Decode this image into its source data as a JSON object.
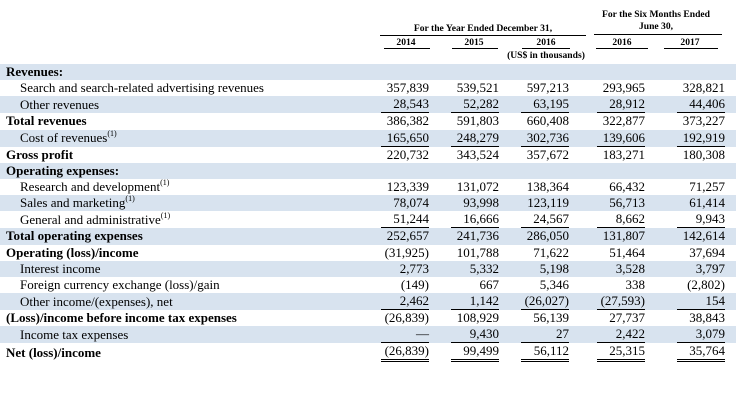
{
  "header": {
    "year_group": "For the Year Ended December 31,",
    "six_month_group_line1": "For the Six Months Ended",
    "six_month_group_line2": "June 30,",
    "years": [
      "2014",
      "2015",
      "2016",
      "2016",
      "2017"
    ],
    "unit_note": "(US$ in thousands)"
  },
  "rows": [
    {
      "label": "Revenues:",
      "indent": false,
      "bold": true,
      "shaded": true,
      "values": [
        "",
        "",
        "",
        "",
        ""
      ],
      "underline": "none"
    },
    {
      "label": "Search and search-related advertising revenues",
      "indent": true,
      "bold": false,
      "shaded": false,
      "values": [
        "357,839",
        "539,521",
        "597,213",
        "293,965",
        "328,821"
      ],
      "underline": "none"
    },
    {
      "label": "Other revenues",
      "indent": true,
      "bold": false,
      "shaded": true,
      "values": [
        "28,543",
        "52,282",
        "63,195",
        "28,912",
        "44,406"
      ],
      "underline": "single"
    },
    {
      "label": "Total revenues",
      "indent": false,
      "bold": true,
      "shaded": false,
      "values": [
        "386,382",
        "591,803",
        "660,408",
        "322,877",
        "373,227"
      ],
      "underline": "none"
    },
    {
      "label": "Cost of revenues",
      "sup": "(1)",
      "indent": true,
      "bold": false,
      "shaded": true,
      "values": [
        "165,650",
        "248,279",
        "302,736",
        "139,606",
        "192,919"
      ],
      "underline": "single"
    },
    {
      "label": "Gross profit",
      "indent": false,
      "bold": true,
      "shaded": false,
      "values": [
        "220,732",
        "343,524",
        "357,672",
        "183,271",
        "180,308"
      ],
      "underline": "none"
    },
    {
      "label": "Operating expenses:",
      "indent": false,
      "bold": true,
      "shaded": true,
      "values": [
        "",
        "",
        "",
        "",
        ""
      ],
      "underline": "none"
    },
    {
      "label": "Research and development",
      "sup": "(1)",
      "indent": true,
      "bold": false,
      "shaded": false,
      "values": [
        "123,339",
        "131,072",
        "138,364",
        "66,432",
        "71,257"
      ],
      "underline": "none"
    },
    {
      "label": "Sales and marketing",
      "sup": "(1)",
      "indent": true,
      "bold": false,
      "shaded": true,
      "values": [
        "78,074",
        "93,998",
        "123,119",
        "56,713",
        "61,414"
      ],
      "underline": "none"
    },
    {
      "label": "General and administrative",
      "sup": "(1)",
      "indent": true,
      "bold": false,
      "shaded": false,
      "values": [
        "51,244",
        "16,666",
        "24,567",
        "8,662",
        "9,943"
      ],
      "underline": "single"
    },
    {
      "label": "Total operating expenses",
      "indent": false,
      "bold": true,
      "shaded": true,
      "values": [
        "252,657",
        "241,736",
        "286,050",
        "131,807",
        "142,614"
      ],
      "underline": "none"
    },
    {
      "label": "Operating (loss)/income",
      "indent": false,
      "bold": true,
      "shaded": false,
      "values": [
        "(31,925)",
        "101,788",
        "71,622",
        "51,464",
        "37,694"
      ],
      "underline": "none"
    },
    {
      "label": "Interest income",
      "indent": true,
      "bold": false,
      "shaded": true,
      "values": [
        "2,773",
        "5,332",
        "5,198",
        "3,528",
        "3,797"
      ],
      "underline": "none"
    },
    {
      "label": "Foreign currency exchange (loss)/gain",
      "indent": true,
      "bold": false,
      "shaded": false,
      "values": [
        "(149)",
        "667",
        "5,346",
        "338",
        "(2,802)"
      ],
      "underline": "none"
    },
    {
      "label": "Other income/(expenses), net",
      "indent": true,
      "bold": false,
      "shaded": true,
      "values": [
        "2,462",
        "1,142",
        "(26,027)",
        "(27,593)",
        "154"
      ],
      "underline": "single"
    },
    {
      "label": "(Loss)/income before income tax expenses",
      "indent": false,
      "bold": true,
      "shaded": false,
      "values": [
        "(26,839)",
        "108,929",
        "56,139",
        "27,737",
        "38,843"
      ],
      "underline": "none"
    },
    {
      "label": "Income tax expenses",
      "indent": true,
      "bold": false,
      "shaded": true,
      "values": [
        "—",
        "9,430",
        "27",
        "2,422",
        "3,079"
      ],
      "underline": "single"
    },
    {
      "label": "Net (loss)/income",
      "indent": false,
      "bold": true,
      "shaded": false,
      "values": [
        "(26,839)",
        "99,499",
        "56,112",
        "25,315",
        "35,764"
      ],
      "underline": "double"
    }
  ]
}
